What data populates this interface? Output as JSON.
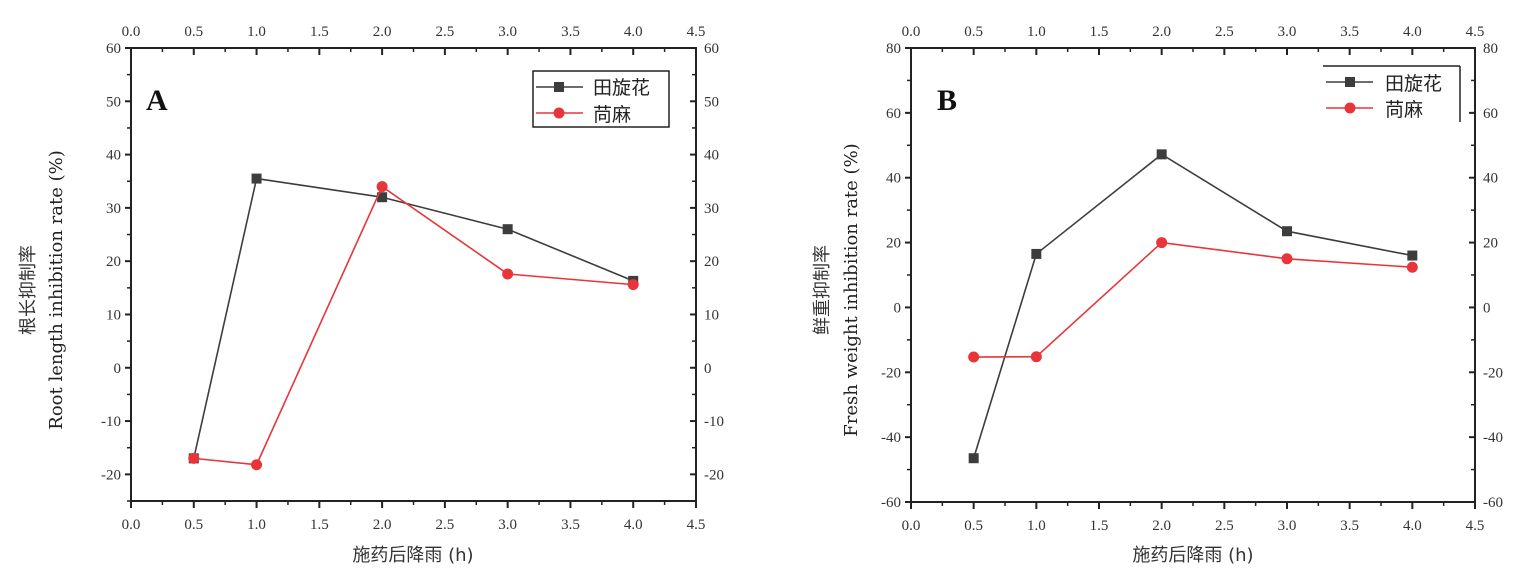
{
  "chart_data": [
    {
      "type": "line",
      "panel_label": "A",
      "title": "",
      "xlabel": "施药后降雨 (h)",
      "ylabel_cn": "根长抑制率",
      "ylabel_en": "Root length inhibition rate (%)",
      "xlim": [
        0,
        4.5
      ],
      "ylim": [
        -25,
        60
      ],
      "x_ticks": [
        0.0,
        0.5,
        1.0,
        1.5,
        2.0,
        2.5,
        3.0,
        3.5,
        4.0,
        4.5
      ],
      "x_tick_labels": [
        "0.0",
        "0.5",
        "1.0",
        "1.5",
        "2.0",
        "2.5",
        "3.0",
        "3.5",
        "4.0",
        "4.5"
      ],
      "y_ticks": [
        -20,
        -10,
        0,
        10,
        20,
        30,
        40,
        50,
        60
      ],
      "y_tick_labels": [
        "-20",
        "-10",
        "0",
        "10",
        "20",
        "30",
        "40",
        "50",
        "60"
      ],
      "grid": false,
      "mirror_axes": true,
      "legend_position": "top-right",
      "x": [
        0.5,
        1.0,
        2.0,
        3.0,
        4.0
      ],
      "series": [
        {
          "name": "田旋花",
          "color": "#3d3d3d",
          "marker": "square",
          "values": [
            -17.0,
            35.5,
            32.0,
            26.0,
            16.3
          ]
        },
        {
          "name": "苘麻",
          "color": "#e8353a",
          "marker": "circle",
          "values": [
            -17.0,
            -18.2,
            34.0,
            17.6,
            15.6
          ]
        }
      ]
    },
    {
      "type": "line",
      "panel_label": "B",
      "title": "",
      "xlabel": "施药后降雨 (h)",
      "ylabel_cn": "鲜重抑制率",
      "ylabel_en": "Fresh weight inhibition rate (%)",
      "xlim": [
        0,
        4.5
      ],
      "ylim": [
        -60,
        80
      ],
      "x_ticks": [
        0.0,
        0.5,
        1.0,
        1.5,
        2.0,
        2.5,
        3.0,
        3.5,
        4.0,
        4.5
      ],
      "x_tick_labels": [
        "0.0",
        "0.5",
        "1.0",
        "1.5",
        "2.0",
        "2.5",
        "3.0",
        "3.5",
        "4.0",
        "4.5"
      ],
      "y_ticks": [
        -60,
        -40,
        -20,
        0,
        20,
        40,
        60,
        80
      ],
      "y_tick_labels": [
        "-60",
        "-40",
        "-20",
        "0",
        "20",
        "40",
        "60",
        "80"
      ],
      "grid": false,
      "mirror_axes": true,
      "legend_position": "top-right",
      "x": [
        0.5,
        1.0,
        2.0,
        3.0,
        4.0
      ],
      "series": [
        {
          "name": "田旋花",
          "color": "#3d3d3d",
          "marker": "square",
          "values": [
            -46.5,
            16.5,
            47.2,
            23.5,
            16.0
          ]
        },
        {
          "name": "苘麻",
          "color": "#e8353a",
          "marker": "circle",
          "values": [
            -15.3,
            -15.2,
            20.0,
            15.0,
            12.4
          ]
        }
      ]
    }
  ]
}
